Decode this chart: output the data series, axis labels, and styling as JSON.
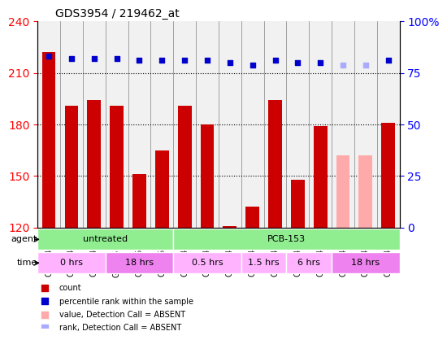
{
  "title": "GDS3954 / 219462_at",
  "samples": [
    "GSM149381",
    "GSM149382",
    "GSM149383",
    "GSM154182",
    "GSM154183",
    "GSM154184",
    "GSM149384",
    "GSM149385",
    "GSM149386",
    "GSM149387",
    "GSM149388",
    "GSM149389",
    "GSM149390",
    "GSM149391",
    "GSM149392",
    "GSM149393"
  ],
  "count_values": [
    222,
    191,
    194,
    191,
    151,
    165,
    191,
    180,
    121,
    132,
    194,
    148,
    179,
    162,
    162,
    181
  ],
  "count_absent": [
    false,
    false,
    false,
    false,
    false,
    false,
    false,
    false,
    false,
    false,
    false,
    false,
    false,
    true,
    true,
    false
  ],
  "percentile_values": [
    83,
    82,
    82,
    82,
    81,
    81,
    81,
    81,
    80,
    79,
    81,
    80,
    80,
    79,
    79,
    81
  ],
  "percentile_absent": [
    false,
    false,
    false,
    false,
    false,
    false,
    false,
    false,
    false,
    false,
    false,
    false,
    false,
    true,
    true,
    false
  ],
  "ylim_left": [
    120,
    240
  ],
  "ylim_right": [
    0,
    100
  ],
  "yticks_left": [
    120,
    150,
    180,
    210,
    240
  ],
  "yticks_right": [
    0,
    25,
    50,
    75,
    100
  ],
  "agent_groups": [
    {
      "label": "untreated",
      "start": 0,
      "end": 6,
      "color": "#90ee90"
    },
    {
      "label": "PCB-153",
      "start": 6,
      "end": 16,
      "color": "#90ee90"
    }
  ],
  "time_groups": [
    {
      "label": "0 hrs",
      "start": 0,
      "end": 3,
      "color": "#ffb3ff"
    },
    {
      "label": "18 hrs",
      "start": 3,
      "end": 6,
      "color": "#ee82ee"
    },
    {
      "label": "0.5 hrs",
      "start": 6,
      "end": 9,
      "color": "#ffb3ff"
    },
    {
      "label": "1.5 hrs",
      "start": 9,
      "end": 11,
      "color": "#ffb3ff"
    },
    {
      "label": "6 hrs",
      "start": 11,
      "end": 13,
      "color": "#ffb3ff"
    },
    {
      "label": "18 hrs",
      "start": 13,
      "end": 16,
      "color": "#ee82ee"
    }
  ],
  "bar_color_present": "#cc0000",
  "bar_color_absent": "#ffaaaa",
  "dot_color_present": "#0000cc",
  "dot_color_absent": "#aaaaff",
  "bg_color": "#f0f0f0",
  "legend_items": [
    {
      "label": "count",
      "color": "#cc0000",
      "marker": "s"
    },
    {
      "label": "percentile rank within the sample",
      "color": "#0000cc",
      "marker": "s"
    },
    {
      "label": "value, Detection Call = ABSENT",
      "color": "#ffaaaa",
      "marker": "s"
    },
    {
      "label": "rank, Detection Call = ABSENT",
      "color": "#aaaaff",
      "marker": "s"
    }
  ]
}
